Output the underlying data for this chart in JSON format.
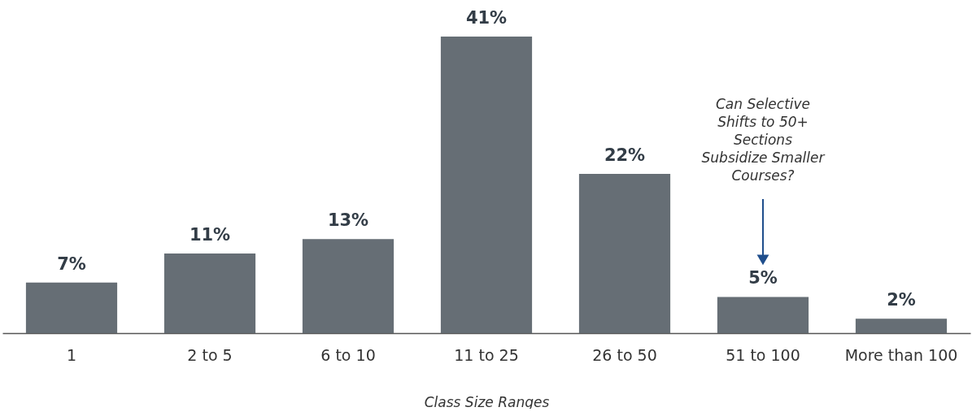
{
  "chart_data": {
    "type": "bar",
    "xlabel": "Class Size Ranges",
    "categories": [
      "1",
      "2 to 5",
      "6 to 10",
      "11 to 25",
      "26 to 50",
      "51 to 100",
      "More than 100"
    ],
    "values": [
      7,
      11,
      13,
      41,
      22,
      5,
      2
    ],
    "value_labels": [
      "7%",
      "11%",
      "13%",
      "41%",
      "22%",
      "5%",
      "2%"
    ],
    "color": "#666e75",
    "annotations": [
      "Can Selective Shifts to 50+ Sections Subsidize Smaller Courses?"
    ],
    "grid": false
  }
}
